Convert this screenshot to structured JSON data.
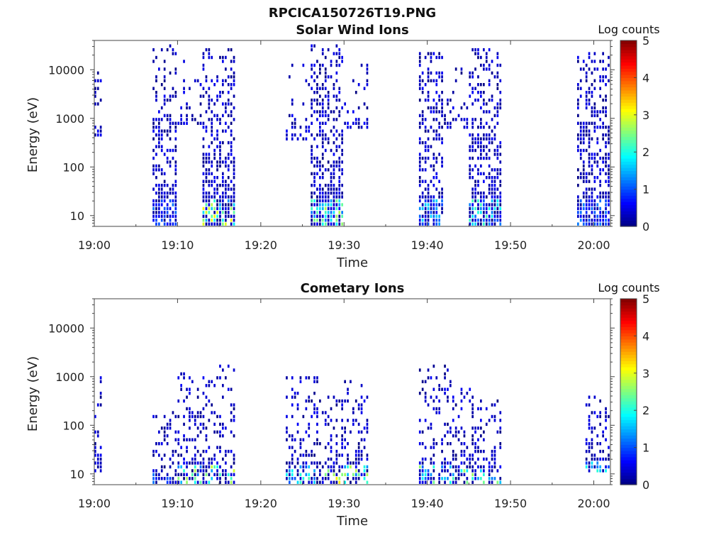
{
  "figure_title": "RPCICA150726T19.PNG",
  "colorbar_title": "Log counts",
  "colorbar_ticks": [
    "0",
    "1",
    "2",
    "3",
    "4",
    "5"
  ],
  "colormap": [
    "#00007f",
    "#0000ff",
    "#007fff",
    "#00ffff",
    "#7fff7f",
    "#ffff00",
    "#ff7f00",
    "#ff0000",
    "#7f0000"
  ],
  "chart_data": [
    {
      "type": "heatmap",
      "title": "Solar Wind Ions",
      "xlabel": "Time",
      "ylabel": "Energy (eV)",
      "yscale": "log",
      "ylim": [
        6,
        40000
      ],
      "xlim": [
        "19:00",
        "20:02"
      ],
      "x_ticks": [
        "19:00",
        "19:10",
        "19:20",
        "19:30",
        "19:40",
        "19:50",
        "20:00"
      ],
      "y_ticks": [
        "10",
        "100",
        "1000",
        "10000"
      ],
      "color_scale": "Log counts",
      "clim": [
        0,
        5
      ],
      "bursts": [
        {
          "start": "19:00",
          "end": "19:01",
          "emin": 400,
          "emax": 9000,
          "density": 0.35,
          "peak": 0.6
        },
        {
          "start": "19:07",
          "end": "19:10",
          "emin": 6,
          "emax": 30000,
          "density": 0.55,
          "peak": 1.2
        },
        {
          "start": "19:10",
          "end": "19:13",
          "emin": 600,
          "emax": 14000,
          "density": 0.18,
          "peak": 0.6
        },
        {
          "start": "19:13",
          "end": "19:17",
          "emin": 6,
          "emax": 25000,
          "density": 0.55,
          "peak": 3.2
        },
        {
          "start": "19:23",
          "end": "19:26",
          "emin": 300,
          "emax": 15000,
          "density": 0.15,
          "peak": 0.6
        },
        {
          "start": "19:26",
          "end": "19:30",
          "emin": 6,
          "emax": 28000,
          "density": 0.6,
          "peak": 2.8
        },
        {
          "start": "19:30",
          "end": "19:33",
          "emin": 500,
          "emax": 15000,
          "density": 0.22,
          "peak": 0.7
        },
        {
          "start": "19:39",
          "end": "19:42",
          "emin": 6,
          "emax": 20000,
          "density": 0.6,
          "peak": 1.8
        },
        {
          "start": "19:42",
          "end": "19:45",
          "emin": 500,
          "emax": 12000,
          "density": 0.2,
          "peak": 0.6
        },
        {
          "start": "19:45",
          "end": "19:49",
          "emin": 6,
          "emax": 25000,
          "density": 0.6,
          "peak": 2.2
        },
        {
          "start": "19:58",
          "end": "20:02",
          "emin": 6,
          "emax": 20000,
          "density": 0.6,
          "peak": 1.3
        }
      ]
    },
    {
      "type": "heatmap",
      "title": "Cometary Ions",
      "xlabel": "Time",
      "ylabel": "Energy (eV)",
      "yscale": "log",
      "ylim": [
        6,
        40000
      ],
      "xlim": [
        "19:00",
        "20:02"
      ],
      "x_ticks": [
        "19:00",
        "19:10",
        "19:20",
        "19:30",
        "19:40",
        "19:50",
        "20:00"
      ],
      "y_ticks": [
        "10",
        "100",
        "1000",
        "10000"
      ],
      "color_scale": "Log counts",
      "clim": [
        0,
        5
      ],
      "bursts": [
        {
          "start": "19:00",
          "end": "19:01",
          "emin": 10,
          "emax": 1200,
          "density": 0.3,
          "peak": 0.5
        },
        {
          "start": "19:07",
          "end": "19:10",
          "emin": 6,
          "emax": 200,
          "density": 0.35,
          "peak": 1.3
        },
        {
          "start": "19:10",
          "end": "19:14",
          "emin": 6,
          "emax": 1200,
          "density": 0.35,
          "peak": 2.8
        },
        {
          "start": "19:14",
          "end": "19:17",
          "emin": 6,
          "emax": 1500,
          "density": 0.35,
          "peak": 3.2
        },
        {
          "start": "19:23",
          "end": "19:27",
          "emin": 6,
          "emax": 1000,
          "density": 0.35,
          "peak": 2.4
        },
        {
          "start": "19:27",
          "end": "19:30",
          "emin": 6,
          "emax": 400,
          "density": 0.4,
          "peak": 3.6
        },
        {
          "start": "19:30",
          "end": "19:33",
          "emin": 6,
          "emax": 800,
          "density": 0.35,
          "peak": 2.8
        },
        {
          "start": "19:39",
          "end": "19:43",
          "emin": 6,
          "emax": 1500,
          "density": 0.35,
          "peak": 2.6
        },
        {
          "start": "19:43",
          "end": "19:46",
          "emin": 6,
          "emax": 600,
          "density": 0.35,
          "peak": 3.0
        },
        {
          "start": "19:46",
          "end": "19:49",
          "emin": 6,
          "emax": 400,
          "density": 0.35,
          "peak": 2.6
        },
        {
          "start": "19:59",
          "end": "20:02",
          "emin": 10,
          "emax": 400,
          "density": 0.35,
          "peak": 2.2
        }
      ]
    }
  ]
}
